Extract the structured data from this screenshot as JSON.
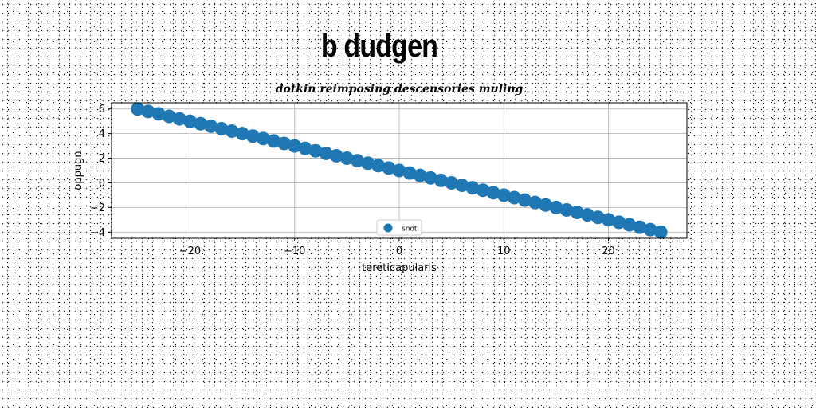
{
  "title": "b dudgen",
  "chart_data": {
    "type": "scatter",
    "title": "dotkin reimposing descensories muling",
    "xlabel": "tereticapularis",
    "ylabel": "oppugn",
    "xlim": [
      -27.5,
      27.5
    ],
    "ylim": [
      -4.5,
      6.5
    ],
    "xticks": [
      -20,
      -10,
      0,
      10,
      20
    ],
    "xtick_labels": [
      "−20",
      "−10",
      "0",
      "10",
      "20"
    ],
    "yticks": [
      6,
      4,
      2,
      0,
      -2,
      -4
    ],
    "ytick_labels": [
      "6",
      "4",
      "2",
      "0",
      "−2",
      "−4"
    ],
    "grid": true,
    "legend_position": "bottom-center",
    "series": [
      {
        "name": "snot",
        "color": "#1f77b4",
        "x_start": -25,
        "x_end": 25,
        "count": 51,
        "x": [
          -25,
          -24,
          -23,
          -22,
          -21,
          -20,
          -19,
          -18,
          -17,
          -16,
          -15,
          -14,
          -13,
          -12,
          -11,
          -10,
          -9,
          -8,
          -7,
          -6,
          -5,
          -4,
          -3,
          -2,
          -1,
          0,
          1,
          2,
          3,
          4,
          5,
          6,
          7,
          8,
          9,
          10,
          11,
          12,
          13,
          14,
          15,
          16,
          17,
          18,
          19,
          20,
          21,
          22,
          23,
          24,
          25
        ],
        "y": [
          6.0,
          5.8,
          5.6,
          5.4,
          5.2,
          5.0,
          4.8,
          4.6,
          4.4,
          4.2,
          4.0,
          3.8,
          3.6,
          3.4,
          3.2,
          3.0,
          2.8,
          2.6,
          2.4,
          2.2,
          2.0,
          1.8,
          1.6,
          1.4,
          1.2,
          1.0,
          0.8,
          0.6,
          0.4,
          0.2,
          0.0,
          -0.2,
          -0.4,
          -0.6,
          -0.8,
          -1.0,
          -1.2,
          -1.4,
          -1.6,
          -1.8,
          -2.0,
          -2.2,
          -2.4,
          -2.6,
          -2.8,
          -3.0,
          -3.2,
          -3.4,
          -3.6,
          -3.8,
          -4.0
        ]
      }
    ]
  }
}
